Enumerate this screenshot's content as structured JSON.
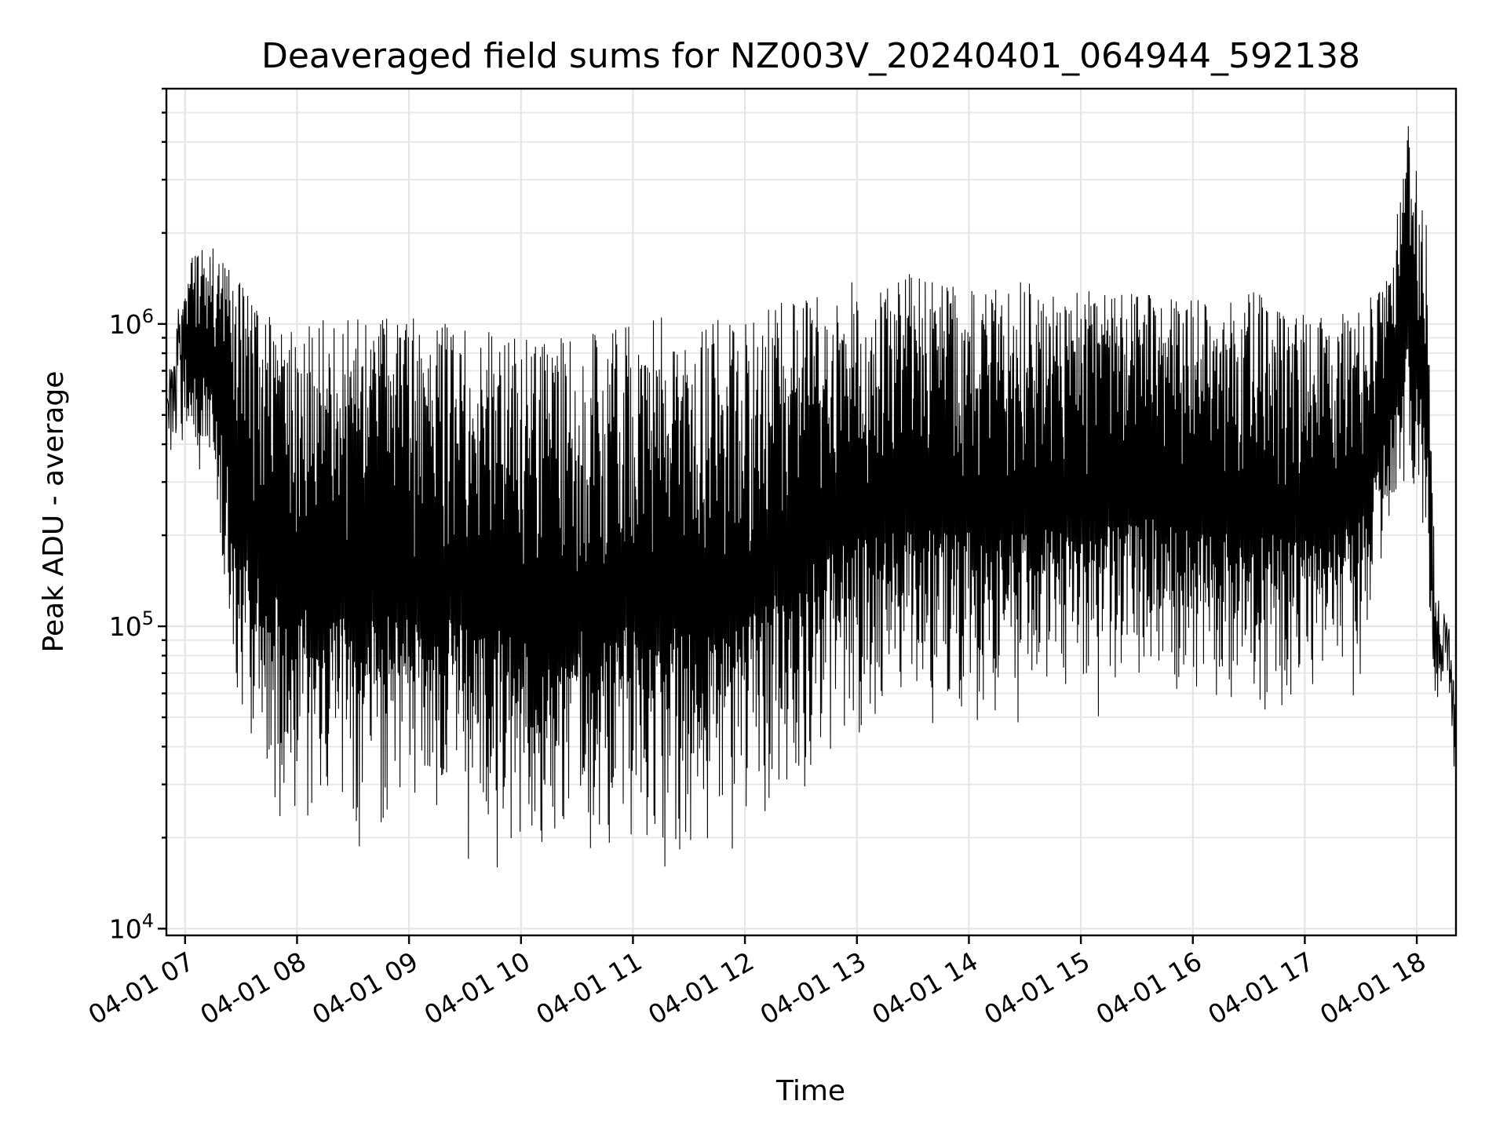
{
  "chart_data": {
    "type": "line",
    "title": "Deaveraged field sums for NZ003V_20240401_064944_592138",
    "xlabel": "Time",
    "ylabel": "Peak ADU - average",
    "y_scale": "log",
    "ylim": [
      9500,
      6000000
    ],
    "xlim": [
      "2024-04-01 06:50",
      "2024-04-01 18:21"
    ],
    "y_ticks": [
      {
        "value": 10000,
        "base": "10",
        "exp": "4"
      },
      {
        "value": 100000,
        "base": "10",
        "exp": "5"
      },
      {
        "value": 1000000,
        "base": "10",
        "exp": "6"
      }
    ],
    "x_ticks": [
      {
        "value": "2024-04-01 07:00",
        "label": "04-01 07"
      },
      {
        "value": "2024-04-01 08:00",
        "label": "04-01 08"
      },
      {
        "value": "2024-04-01 09:00",
        "label": "04-01 09"
      },
      {
        "value": "2024-04-01 10:00",
        "label": "04-01 10"
      },
      {
        "value": "2024-04-01 11:00",
        "label": "04-01 11"
      },
      {
        "value": "2024-04-01 12:00",
        "label": "04-01 12"
      },
      {
        "value": "2024-04-01 13:00",
        "label": "04-01 13"
      },
      {
        "value": "2024-04-01 14:00",
        "label": "04-01 14"
      },
      {
        "value": "2024-04-01 15:00",
        "label": "04-01 15"
      },
      {
        "value": "2024-04-01 16:00",
        "label": "04-01 16"
      },
      {
        "value": "2024-04-01 17:00",
        "label": "04-01 17"
      },
      {
        "value": "2024-04-01 18:00",
        "label": "04-01 18"
      }
    ],
    "grid": true,
    "series": [
      {
        "color": "#000000",
        "envelope": [
          {
            "t": "2024-04-01 06:50",
            "low": 330000,
            "high": 600000
          },
          {
            "t": "2024-04-01 07:00",
            "low": 400000,
            "high": 1700000
          },
          {
            "t": "2024-04-01 07:15",
            "low": 270000,
            "high": 1800000
          },
          {
            "t": "2024-04-01 07:25",
            "low": 75000,
            "high": 1500000
          },
          {
            "t": "2024-04-01 07:40",
            "low": 27000,
            "high": 1100000
          },
          {
            "t": "2024-04-01 08:00",
            "low": 19000,
            "high": 1050000
          },
          {
            "t": "2024-04-01 08:30",
            "low": 17000,
            "high": 1050000
          },
          {
            "t": "2024-04-01 09:00",
            "low": 17000,
            "high": 1050000
          },
          {
            "t": "2024-04-01 09:30",
            "low": 17000,
            "high": 1000000
          },
          {
            "t": "2024-04-01 10:00",
            "low": 14000,
            "high": 900000
          },
          {
            "t": "2024-04-01 10:30",
            "low": 16000,
            "high": 900000
          },
          {
            "t": "2024-04-01 11:00",
            "low": 16000,
            "high": 1000000
          },
          {
            "t": "2024-04-01 11:30",
            "low": 13500,
            "high": 1100000
          },
          {
            "t": "2024-04-01 12:00",
            "low": 18000,
            "high": 1000000
          },
          {
            "t": "2024-04-01 12:30",
            "low": 26000,
            "high": 1300000
          },
          {
            "t": "2024-04-01 13:00",
            "low": 40000,
            "high": 1400000
          },
          {
            "t": "2024-04-01 13:30",
            "low": 42000,
            "high": 1500000
          },
          {
            "t": "2024-04-01 14:00",
            "low": 45000,
            "high": 1300000
          },
          {
            "t": "2024-04-01 14:30",
            "low": 45000,
            "high": 1400000
          },
          {
            "t": "2024-04-01 15:00",
            "low": 45000,
            "high": 1300000
          },
          {
            "t": "2024-04-01 15:30",
            "low": 55000,
            "high": 1300000
          },
          {
            "t": "2024-04-01 16:00",
            "low": 55000,
            "high": 1200000
          },
          {
            "t": "2024-04-01 16:30",
            "low": 45000,
            "high": 1300000
          },
          {
            "t": "2024-04-01 17:00",
            "low": 50000,
            "high": 1100000
          },
          {
            "t": "2024-04-01 17:30",
            "low": 60000,
            "high": 1100000
          },
          {
            "t": "2024-04-01 17:45",
            "low": 200000,
            "high": 1500000
          },
          {
            "t": "2024-04-01 17:55",
            "low": 250000,
            "high": 4700000
          },
          {
            "t": "2024-04-01 18:05",
            "low": 150000,
            "high": 2200000
          },
          {
            "t": "2024-04-01 18:10",
            "low": 55000,
            "high": 130000
          },
          {
            "t": "2024-04-01 18:18",
            "low": 60000,
            "high": 100000
          },
          {
            "t": "2024-04-01 18:21",
            "low": 25000,
            "high": 50000
          }
        ]
      }
    ]
  }
}
